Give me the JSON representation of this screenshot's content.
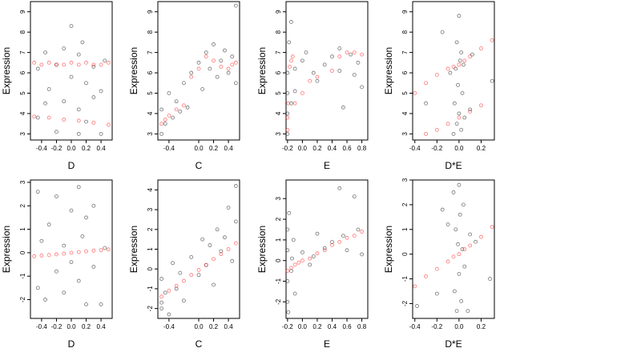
{
  "chart_data": [
    {
      "type": "scatter",
      "x_label": "D",
      "y_label": "Expression",
      "xlim": [
        -0.55,
        0.55
      ],
      "ylim": [
        2.7,
        9.5
      ],
      "xticks": [
        -0.4,
        -0.2,
        {
          "value": 0,
          "label": "0.0"
        },
        0.2,
        0.4
      ],
      "yticks": [
        3,
        4,
        5,
        6,
        7,
        8,
        9
      ],
      "series": [
        {
          "color": "#000000",
          "x": [
            -0.45,
            -0.45,
            -0.35,
            -0.35,
            -0.3,
            -0.2,
            -0.2,
            -0.1,
            -0.1,
            0,
            0,
            0.1,
            0.1,
            0.1,
            0.15,
            0.2,
            0.2,
            0.3,
            0.3,
            0.4,
            0.4,
            0.45
          ],
          "y": [
            6.2,
            3.8,
            4.5,
            7.0,
            5.2,
            6.4,
            3.1,
            4.6,
            7.2,
            5.8,
            8.3,
            6.9,
            4.2,
            3.0,
            7.5,
            5.5,
            3.6,
            6.3,
            4.8,
            3.0,
            5.1,
            6.6
          ]
        },
        {
          "color": "#ff0000",
          "x": [
            -0.5,
            -0.4,
            -0.3,
            -0.2,
            -0.1,
            0,
            0.1,
            0.2,
            0.3,
            0.4,
            0.5,
            -0.5,
            -0.3,
            -0.1,
            0.1,
            0.3,
            0.5
          ],
          "y": [
            6.5,
            6.4,
            6.5,
            6.4,
            6.4,
            6.5,
            6.4,
            6.5,
            6.4,
            6.4,
            6.5,
            3.85,
            3.8,
            3.7,
            3.65,
            3.55,
            3.45
          ]
        }
      ]
    },
    {
      "type": "scatter",
      "x_label": "C",
      "y_label": "Expression",
      "xlim": [
        -0.55,
        0.55
      ],
      "ylim": [
        2.7,
        9.5
      ],
      "xticks": [
        -0.4,
        {
          "value": 0,
          "label": "0.0"
        },
        0.2,
        0.4
      ],
      "yticks": [
        3,
        4,
        5,
        6,
        7,
        8,
        9
      ],
      "series": [
        {
          "color": "#000000",
          "x": [
            -0.5,
            -0.5,
            -0.45,
            -0.4,
            -0.35,
            -0.3,
            -0.25,
            -0.2,
            -0.15,
            -0.1,
            0,
            0.05,
            0.1,
            0.15,
            0.2,
            0.25,
            0.3,
            0.35,
            0.4,
            0.45,
            0.5,
            0.5
          ],
          "y": [
            3.0,
            4.2,
            3.5,
            5.0,
            3.8,
            4.6,
            4.1,
            5.5,
            4.3,
            6.0,
            6.5,
            5.2,
            7.0,
            6.2,
            7.4,
            5.8,
            6.6,
            7.1,
            6.0,
            6.8,
            9.3,
            5.5
          ]
        },
        {
          "color": "#ff0000",
          "x": [
            -0.5,
            -0.45,
            -0.4,
            -0.3,
            -0.2,
            -0.1,
            0,
            0.1,
            0.2,
            0.3,
            0.4,
            0.45,
            0.5
          ],
          "y": [
            3.5,
            3.7,
            3.9,
            4.2,
            4.4,
            5.8,
            6.2,
            6.8,
            6.6,
            6.3,
            6.2,
            6.4,
            6.5
          ]
        }
      ]
    },
    {
      "type": "scatter",
      "x_label": "E",
      "y_label": "Expression",
      "xlim": [
        -0.22,
        0.88
      ],
      "ylim": [
        2.7,
        9.5
      ],
      "xticks": [
        -0.2,
        {
          "value": 0,
          "label": "0.0"
        },
        0.2,
        0.4,
        0.6,
        0.8
      ],
      "yticks": [
        3,
        4,
        5,
        6,
        7,
        8,
        9
      ],
      "series": [
        {
          "color": "#000000",
          "x": [
            -0.2,
            -0.2,
            -0.2,
            -0.2,
            -0.18,
            -0.15,
            -0.15,
            -0.1,
            -0.1,
            0,
            0.05,
            0.15,
            0.2,
            0.3,
            0.4,
            0.5,
            0.5,
            0.55,
            0.65,
            0.7,
            0.75,
            0.8
          ],
          "y": [
            3.0,
            4.0,
            5.0,
            6.0,
            7.5,
            4.5,
            8.5,
            6.2,
            5.1,
            6.6,
            7.0,
            6.0,
            5.6,
            6.4,
            6.8,
            7.2,
            6.1,
            4.3,
            6.9,
            5.9,
            6.5,
            5.3
          ]
        },
        {
          "color": "#ff0000",
          "x": [
            -0.2,
            -0.2,
            -0.19,
            -0.17,
            -0.15,
            -0.13,
            -0.1,
            0,
            0.1,
            0.2,
            0.4,
            0.5,
            0.6,
            0.7,
            0.8
          ],
          "y": [
            3.2,
            3.8,
            4.5,
            6.3,
            6.6,
            6.8,
            4.5,
            5.0,
            5.6,
            5.8,
            6.1,
            6.8,
            7.0,
            7.0,
            6.9
          ]
        }
      ]
    },
    {
      "type": "scatter",
      "x_label": "D*E",
      "y_label": "Expression",
      "xlim": [
        -0.42,
        0.32
      ],
      "ylim": [
        2.7,
        9.5
      ],
      "xticks": [
        -0.4,
        -0.2,
        {
          "value": 0,
          "label": "0.0"
        },
        0.2
      ],
      "yticks": [
        3,
        4,
        5,
        6,
        7,
        8,
        9
      ],
      "series": [
        {
          "color": "#000000",
          "x": [
            -0.05,
            -0.04,
            -0.03,
            -0.02,
            -0.02,
            -0.01,
            0,
            0,
            0.01,
            0.02,
            0.02,
            0.03,
            0.04,
            0.05,
            -0.15,
            0.12,
            0.3,
            -0.3,
            0.1,
            -0.08
          ],
          "y": [
            3.0,
            4.5,
            6.2,
            7.5,
            3.5,
            5.4,
            8.8,
            4.0,
            6.6,
            3.2,
            7.0,
            5.0,
            6.4,
            3.8,
            8.0,
            6.9,
            5.6,
            4.5,
            4.2,
            6.0
          ]
        },
        {
          "color": "#ff0000",
          "x": [
            -0.4,
            -0.3,
            -0.2,
            -0.1,
            -0.05,
            0,
            0.05,
            0.1,
            0.2,
            0.3,
            -0.3,
            -0.2,
            -0.1,
            0,
            0.1,
            0.2
          ],
          "y": [
            5.0,
            5.5,
            5.9,
            6.2,
            6.3,
            6.4,
            6.6,
            6.8,
            7.2,
            7.6,
            3.0,
            3.2,
            3.5,
            3.8,
            4.1,
            4.4
          ]
        }
      ]
    },
    {
      "type": "scatter",
      "x_label": "D",
      "y_label": "Expression",
      "xlim": [
        -0.55,
        0.55
      ],
      "ylim": [
        -2.8,
        3.1
      ],
      "xticks": [
        -0.4,
        -0.2,
        {
          "value": 0,
          "label": "0.0"
        },
        0.2,
        0.4
      ],
      "yticks": [
        -2,
        -1,
        0,
        1,
        2,
        3
      ],
      "series": [
        {
          "color": "#000000",
          "x": [
            -0.45,
            -0.45,
            -0.4,
            -0.35,
            -0.3,
            -0.2,
            -0.2,
            -0.1,
            -0.1,
            0,
            0,
            0.1,
            0.1,
            0.15,
            0.2,
            0.2,
            0.3,
            0.3,
            0.4,
            0.45
          ],
          "y": [
            2.6,
            -1.5,
            0.5,
            -2.0,
            1.2,
            -0.8,
            2.4,
            0.3,
            -1.7,
            1.8,
            -0.4,
            2.8,
            -1.2,
            0.7,
            -2.2,
            1.5,
            -0.6,
            2.0,
            -2.2,
            0.2
          ]
        },
        {
          "color": "#ff0000",
          "x": [
            -0.5,
            -0.4,
            -0.3,
            -0.2,
            -0.1,
            0,
            0.1,
            0.2,
            0.3,
            0.4,
            0.5
          ],
          "y": [
            -0.15,
            -0.12,
            -0.1,
            -0.07,
            -0.04,
            0,
            0.03,
            0.06,
            0.09,
            0.11,
            0.14
          ]
        }
      ]
    },
    {
      "type": "scatter",
      "x_label": "C",
      "y_label": "Expression",
      "xlim": [
        -0.55,
        0.55
      ],
      "ylim": [
        -2.5,
        4.5
      ],
      "xticks": [
        -0.4,
        {
          "value": 0,
          "label": "0.0"
        },
        0.2,
        0.4
      ],
      "yticks": [
        -2,
        -1,
        0,
        1,
        2,
        3,
        4
      ],
      "series": [
        {
          "color": "#000000",
          "x": [
            -0.5,
            -0.5,
            -0.45,
            -0.4,
            -0.35,
            -0.3,
            -0.25,
            -0.2,
            -0.1,
            0,
            0.05,
            0.1,
            0.15,
            0.2,
            0.25,
            0.3,
            0.35,
            0.4,
            0.45,
            0.5,
            0.5,
            -0.5
          ],
          "y": [
            -2.0,
            -0.5,
            -1.2,
            -2.3,
            0.3,
            -1.0,
            -0.2,
            -1.6,
            0.6,
            -0.3,
            1.5,
            0.2,
            1.2,
            -0.8,
            2.0,
            0.9,
            1.6,
            3.1,
            0.4,
            4.2,
            2.4,
            -1.7
          ]
        },
        {
          "color": "#ff0000",
          "x": [
            -0.5,
            -0.4,
            -0.3,
            -0.2,
            -0.1,
            0,
            0.1,
            0.2,
            0.3,
            0.4,
            0.5
          ],
          "y": [
            -1.4,
            -1.1,
            -0.85,
            -0.6,
            -0.3,
            -0.05,
            0.2,
            0.5,
            0.75,
            1.0,
            1.3
          ]
        }
      ]
    },
    {
      "type": "scatter",
      "x_label": "E",
      "y_label": "Expression",
      "xlim": [
        -0.22,
        0.88
      ],
      "ylim": [
        -2.8,
        3.9
      ],
      "xticks": [
        -0.2,
        {
          "value": 0,
          "label": "0.0"
        },
        0.2,
        0.4,
        0.6,
        0.8
      ],
      "yticks": [
        -2,
        -1,
        0,
        1,
        2,
        3
      ],
      "series": [
        {
          "color": "#000000",
          "x": [
            -0.2,
            -0.2,
            -0.2,
            -0.2,
            -0.18,
            -0.15,
            -0.12,
            -0.1,
            0,
            0.1,
            0.15,
            0.2,
            0.3,
            0.4,
            0.5,
            0.55,
            0.6,
            0.7,
            0.75,
            0.8,
            -0.19,
            -0.14
          ],
          "y": [
            -2.0,
            -1.0,
            0.5,
            1.5,
            2.3,
            -0.5,
            1.0,
            -1.6,
            0.4,
            -0.2,
            0.2,
            1.3,
            0.6,
            0.9,
            3.5,
            1.2,
            0.5,
            3.1,
            1.5,
            0.3,
            -2.5,
            0.1
          ]
        },
        {
          "color": "#ff0000",
          "x": [
            -0.2,
            -0.15,
            -0.1,
            -0.05,
            0,
            0.1,
            0.2,
            0.3,
            0.4,
            0.5,
            0.6,
            0.7,
            0.8
          ],
          "y": [
            -0.5,
            -0.35,
            -0.2,
            -0.1,
            0,
            0.1,
            0.35,
            0.5,
            0.75,
            0.9,
            1.1,
            1.2,
            1.4
          ]
        }
      ]
    },
    {
      "type": "scatter",
      "x_label": "D*E",
      "y_label": "Expression",
      "xlim": [
        -0.42,
        0.32
      ],
      "ylim": [
        -2.6,
        3.0
      ],
      "xticks": [
        -0.4,
        -0.2,
        {
          "value": 0,
          "label": "0.0"
        },
        0.2
      ],
      "yticks": [
        -2,
        -1,
        0,
        1,
        2,
        3
      ],
      "series": [
        {
          "color": "#000000",
          "x": [
            -0.05,
            -0.04,
            -0.03,
            -0.02,
            -0.01,
            0,
            0,
            0.01,
            0.02,
            0.03,
            0.04,
            0.05,
            -0.1,
            0.1,
            -0.2,
            0.15,
            0.28,
            -0.38,
            -0.15,
            0.08
          ],
          "y": [
            2.5,
            -1.5,
            1.0,
            -2.3,
            0.4,
            2.8,
            -0.8,
            1.6,
            -1.9,
            0.2,
            2.0,
            -0.5,
            1.2,
            0.8,
            -1.6,
            0.5,
            -1.0,
            -2.1,
            1.8,
            -2.3
          ]
        },
        {
          "color": "#ff0000",
          "x": [
            -0.4,
            -0.3,
            -0.2,
            -0.1,
            -0.05,
            0,
            0.05,
            0.1,
            0.2,
            0.3
          ],
          "y": [
            -1.3,
            -0.9,
            -0.6,
            -0.3,
            -0.1,
            0,
            0.2,
            0.35,
            0.7,
            1.1
          ]
        }
      ]
    }
  ]
}
